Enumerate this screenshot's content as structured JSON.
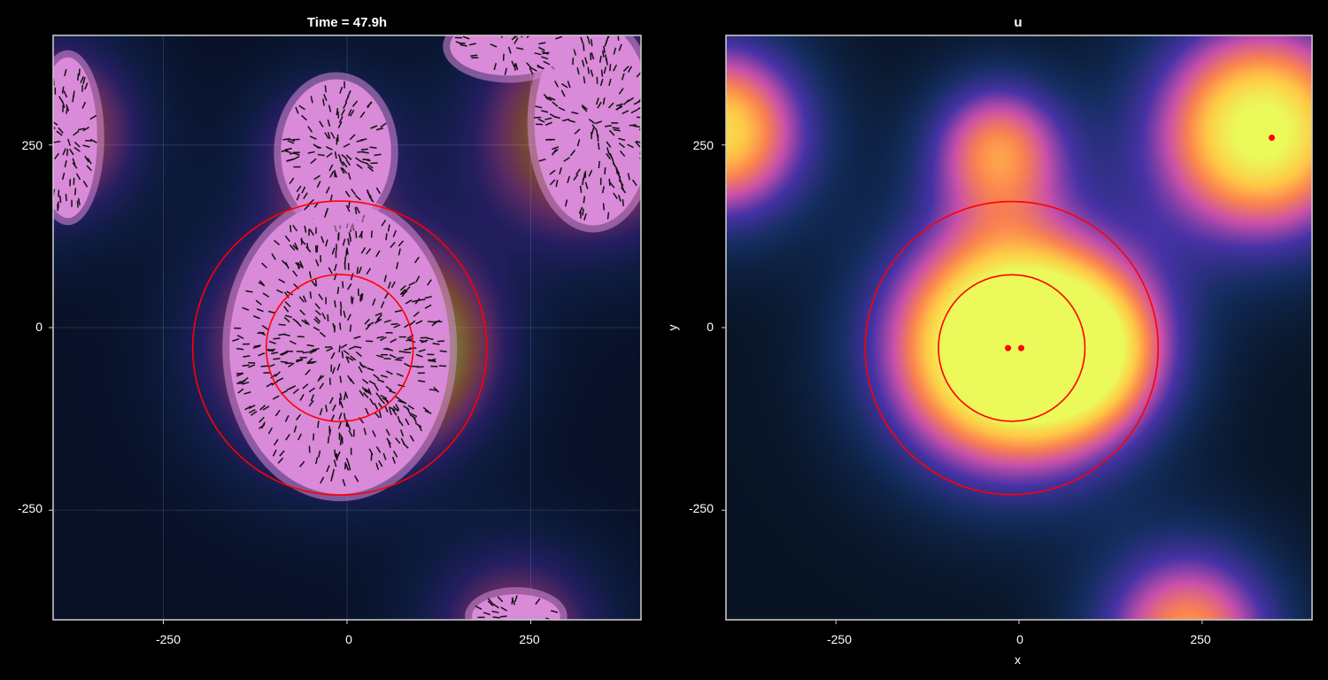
{
  "chart_data": [
    {
      "type": "heatmap",
      "title": "Time = 47.9h",
      "xlabel": "",
      "ylabel": "",
      "xlim": [
        -400,
        400
      ],
      "ylim": [
        -400,
        400
      ],
      "x_ticks": [
        "-250",
        "0",
        "250"
      ],
      "y_ticks": [
        "250",
        "0",
        "-250"
      ],
      "grid": true,
      "colormap_sources": [
        {
          "x": -15,
          "y": -25,
          "amp": 1.2,
          "sigma": 120
        },
        {
          "x": 330,
          "y": 270,
          "amp": 1.0,
          "sigma": 110
        },
        {
          "x": -410,
          "y": 270,
          "amp": 0.9,
          "sigma": 90
        },
        {
          "x": 230,
          "y": -420,
          "amp": 0.7,
          "sigma": 90
        },
        {
          "x": -30,
          "y": 250,
          "amp": 0.6,
          "sigma": 70
        },
        {
          "x": 100,
          "y": -30,
          "amp": 0.5,
          "sigma": 80
        }
      ],
      "circles": [
        {
          "cx": -10,
          "cy": -28,
          "r": 200,
          "color": "#ff0000"
        },
        {
          "cx": -10,
          "cy": -28,
          "r": 100,
          "color": "#ff0000"
        }
      ],
      "cell_clusters": [
        {
          "cx": -10,
          "cy": -28,
          "rx": 150,
          "ry": 200,
          "color": "#d98ad8"
        },
        {
          "cx": -15,
          "cy": 240,
          "rx": 75,
          "ry": 100,
          "color": "#d98ad8"
        },
        {
          "cx": 335,
          "cy": 280,
          "rx": 80,
          "ry": 140,
          "color": "#d98ad8"
        },
        {
          "cx": 220,
          "cy": 385,
          "rx": 80,
          "ry": 40,
          "color": "#d98ad8"
        },
        {
          "cx": -380,
          "cy": 260,
          "rx": 40,
          "ry": 110,
          "color": "#d98ad8"
        },
        {
          "cx": 230,
          "cy": -395,
          "rx": 60,
          "ry": 30,
          "color": "#d98ad8"
        }
      ]
    },
    {
      "type": "heatmap",
      "title": "u",
      "xlabel": "x",
      "ylabel": "y",
      "xlim": [
        -400,
        400
      ],
      "ylim": [
        -400,
        400
      ],
      "x_ticks": [
        "-250",
        "0",
        "250"
      ],
      "y_ticks": [
        "250",
        "0",
        "-250"
      ],
      "grid": false,
      "colormap_sources": [
        {
          "x": -15,
          "y": -25,
          "amp": 1.3,
          "sigma": 120
        },
        {
          "x": 330,
          "y": 270,
          "amp": 1.05,
          "sigma": 110
        },
        {
          "x": -410,
          "y": 270,
          "amp": 0.9,
          "sigma": 90
        },
        {
          "x": 230,
          "y": -420,
          "amp": 0.75,
          "sigma": 90
        },
        {
          "x": -30,
          "y": 250,
          "amp": 0.65,
          "sigma": 70
        },
        {
          "x": 100,
          "y": -30,
          "amp": 0.5,
          "sigma": 80
        }
      ],
      "circles": [
        {
          "cx": -10,
          "cy": -28,
          "r": 200,
          "color": "#ff0000"
        },
        {
          "cx": -10,
          "cy": -28,
          "r": 100,
          "color": "#ff0000"
        }
      ],
      "points": [
        {
          "x": -15,
          "y": -28,
          "color": "#ff0000"
        },
        {
          "x": 3,
          "y": -28,
          "color": "#ff0000"
        },
        {
          "x": 345,
          "y": 260,
          "color": "#ff0000"
        }
      ]
    }
  ]
}
